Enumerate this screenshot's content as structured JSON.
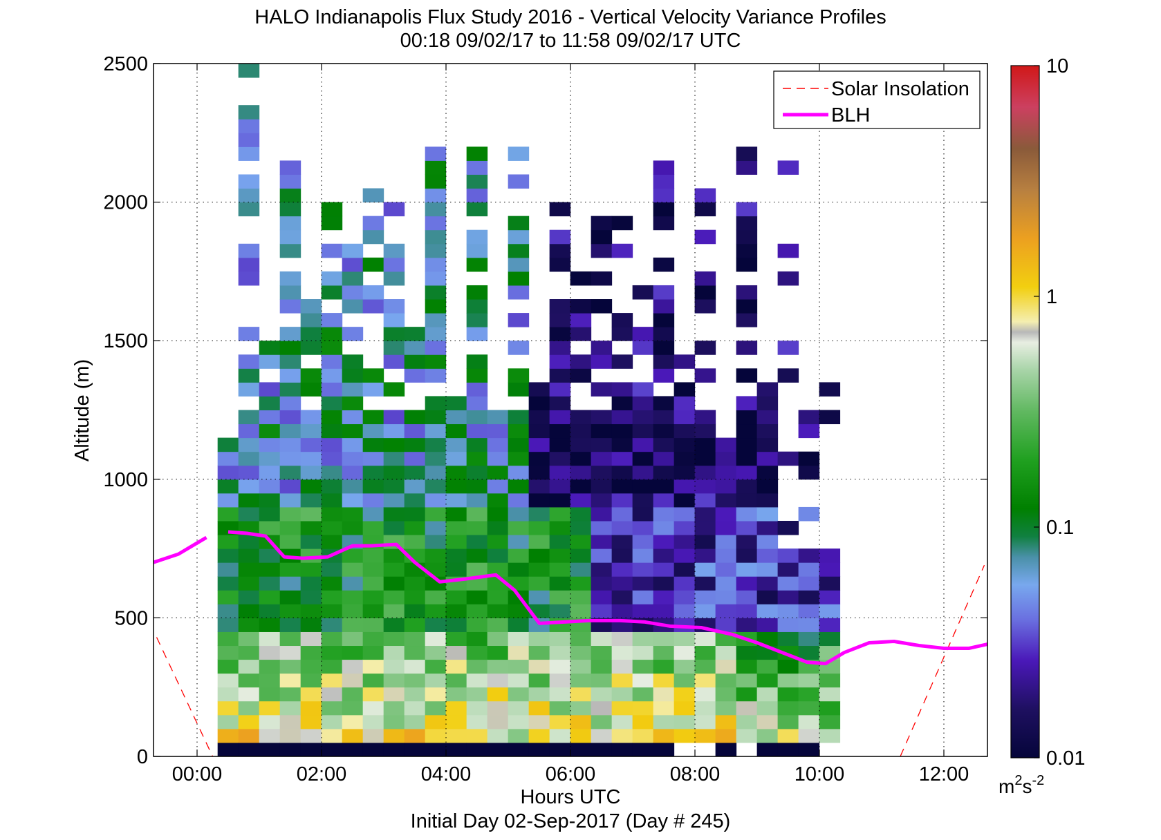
{
  "chart_data": {
    "type": "heatmap",
    "title": "HALO Indianapolis Flux Study 2016 - Vertical Velocity Variance Profiles",
    "subtitle": "00:18 09/02/17 to 11:58 09/02/17  UTC",
    "xlabel": "Hours UTC",
    "xlabel2": "Initial Day 02-Sep-2017 (Day # 245)",
    "ylabel": "Altitude (m)",
    "xlim_hours": [
      -0.7,
      12.7
    ],
    "ylim": [
      0,
      2500
    ],
    "x_ticks": [
      {
        "v": 0,
        "label": "00:00"
      },
      {
        "v": 2,
        "label": "02:00"
      },
      {
        "v": 4,
        "label": "04:00"
      },
      {
        "v": 6,
        "label": "06:00"
      },
      {
        "v": 8,
        "label": "08:00"
      },
      {
        "v": 10,
        "label": "10:00"
      },
      {
        "v": 12,
        "label": "12:00"
      }
    ],
    "y_ticks": [
      {
        "v": 0,
        "label": "0"
      },
      {
        "v": 500,
        "label": "500"
      },
      {
        "v": 1000,
        "label": "1000"
      },
      {
        "v": 1500,
        "label": "1500"
      },
      {
        "v": 2000,
        "label": "2000"
      },
      {
        "v": 2500,
        "label": "2500"
      }
    ],
    "grid": true,
    "legend": {
      "position": "top-right",
      "entries": [
        {
          "name": "Solar Insolation",
          "style": "dashed",
          "color": "#ff0000"
        },
        {
          "name": "BLH",
          "style": "solid",
          "color": "#ff00ff"
        }
      ]
    },
    "colorbar": {
      "scale": "log",
      "range": [
        0.01,
        10
      ],
      "ticks": [
        {
          "v": 0.01,
          "label": "0.01"
        },
        {
          "v": 0.1,
          "label": "0.1"
        },
        {
          "v": 1,
          "label": "1"
        },
        {
          "v": 10,
          "label": "10"
        }
      ],
      "unit_base": "m",
      "unit_exp1": "2",
      "unit_mid": "s",
      "unit_exp2": "-2",
      "stops": [
        [
          0.0,
          "#05053a"
        ],
        [
          0.07,
          "#1e1060"
        ],
        [
          0.14,
          "#4a18b8"
        ],
        [
          0.2,
          "#6a70e0"
        ],
        [
          0.25,
          "#78a8ee"
        ],
        [
          0.29,
          "#4a90a8"
        ],
        [
          0.32,
          "#108040"
        ],
        [
          0.36,
          "#008000"
        ],
        [
          0.43,
          "#20a020"
        ],
        [
          0.5,
          "#60b860"
        ],
        [
          0.56,
          "#a8d4a8"
        ],
        [
          0.6,
          "#e8eee2"
        ],
        [
          0.615,
          "#b8b8b8"
        ],
        [
          0.63,
          "#f4eeb0"
        ],
        [
          0.68,
          "#f2cf10"
        ],
        [
          0.75,
          "#eca020"
        ],
        [
          0.82,
          "#b88040"
        ],
        [
          0.88,
          "#8a5a3a"
        ],
        [
          0.94,
          "#cc4060"
        ],
        [
          1.0,
          "#d01818"
        ]
      ]
    },
    "blh": {
      "label": "BLH",
      "color": "#ff00ff",
      "segments": [
        {
          "x": [
            -0.7,
            -0.3,
            0.0,
            0.15
          ],
          "y": [
            700,
            730,
            770,
            790
          ]
        },
        {
          "x": [
            0.5,
            0.8,
            1.1,
            1.4,
            1.7,
            2.1,
            2.5,
            2.8,
            3.2,
            3.5,
            3.9,
            4.3,
            4.8,
            5.1,
            5.5,
            5.9,
            6.3,
            6.8,
            7.2,
            7.6,
            8.1,
            8.6,
            9.0,
            9.4,
            9.8,
            10.1,
            10.4,
            10.8,
            11.2,
            11.6,
            12.0,
            12.4,
            12.7
          ],
          "y": [
            810,
            805,
            795,
            720,
            715,
            720,
            760,
            760,
            765,
            700,
            630,
            640,
            655,
            600,
            480,
            485,
            490,
            490,
            485,
            470,
            465,
            440,
            410,
            375,
            340,
            335,
            375,
            410,
            415,
            400,
            390,
            390,
            405
          ]
        }
      ]
    },
    "solar_insolation": {
      "label": "Solar Insolation",
      "color": "#ff0000",
      "segments": [
        {
          "x": [
            -0.65,
            0.25
          ],
          "y": [
            430,
            0
          ]
        },
        {
          "x": [
            11.3,
            12.65
          ],
          "y": [
            0,
            690
          ]
        }
      ]
    },
    "field": {
      "x_start": 0.33,
      "x_step": 0.3333,
      "y_step": 50,
      "columns": 30,
      "rows": 50,
      "description_of_values": "log10 of vertical velocity variance per cell"
    }
  }
}
